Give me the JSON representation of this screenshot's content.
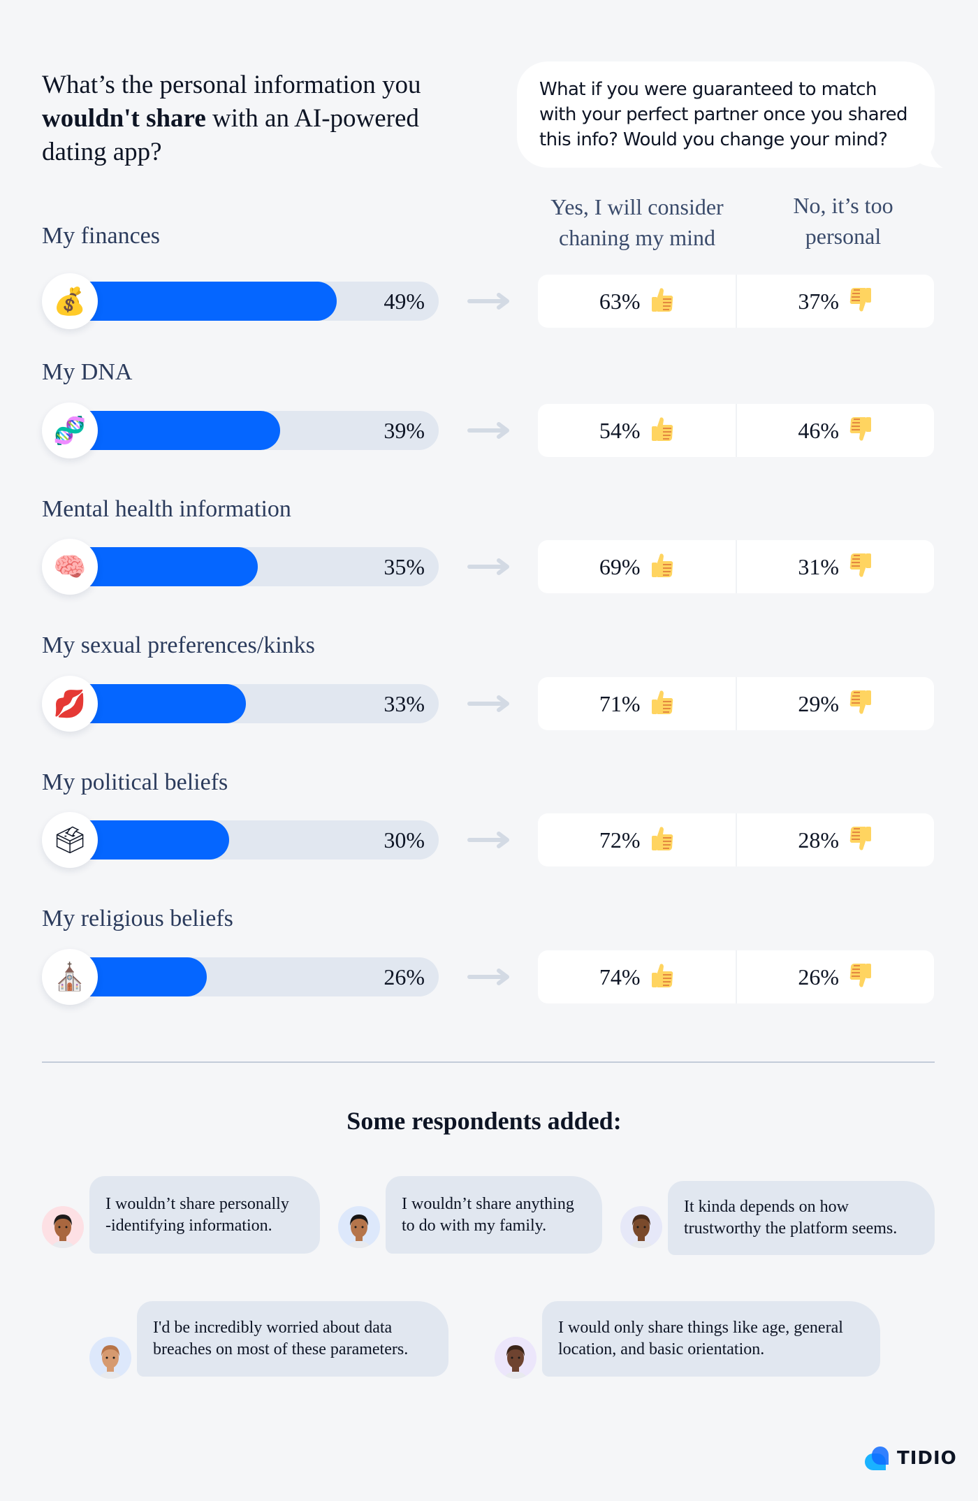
{
  "header": {
    "question_part1": "What’s the personal information you ",
    "question_bold": "wouldn't share",
    "question_part2": " with an AI-powered dating app?",
    "bubble_text": "What if you were guaranteed  to match with your perfect partner once you shared this info? Would you change your mind?",
    "col_yes": "Yes, I will consider chaning my mind",
    "col_no": "No, it’s too personal"
  },
  "chart_data": {
    "type": "bar",
    "title": "What’s the personal information you wouldn't share with an AI-powered dating app?",
    "orientation": "horizontal",
    "categories": [
      "My finances",
      "My DNA",
      "Mental health information",
      "My sexual preferences/kinks",
      "My political beliefs",
      "My religious beliefs"
    ],
    "values": [
      49,
      39,
      35,
      33,
      30,
      26
    ],
    "unit": "%",
    "followup_question": "What if you were guaranteed to match with your perfect partner once you shared this info? Would you change your mind?",
    "series": [
      {
        "name": "Yes, I will consider chaning my mind",
        "values": [
          63,
          54,
          69,
          71,
          72,
          74
        ]
      },
      {
        "name": "No, it’s too personal",
        "values": [
          37,
          46,
          31,
          29,
          28,
          26
        ]
      }
    ],
    "colors": {
      "bar_fill": "#0566ff",
      "bar_track": "#e1e7f0"
    }
  },
  "rows": [
    {
      "label": "My finances",
      "icon": "money-bag-icon",
      "glyph": "💰",
      "pct": 49,
      "pct_label": "49%",
      "yes": "63%",
      "no": "37%"
    },
    {
      "label": "My DNA",
      "icon": "dna-icon",
      "glyph": "🧬",
      "pct": 39,
      "pct_label": "39%",
      "yes": "54%",
      "no": "46%"
    },
    {
      "label": "Mental health information",
      "icon": "brain-icon",
      "glyph": "🧠",
      "pct": 35,
      "pct_label": "35%",
      "yes": "69%",
      "no": "31%"
    },
    {
      "label": "My sexual preferences/kinks",
      "icon": "kiss-mark-icon",
      "glyph": "💋",
      "pct": 33,
      "pct_label": "33%",
      "yes": "71%",
      "no": "29%"
    },
    {
      "label": "My political beliefs",
      "icon": "ballot-box-icon",
      "glyph": "🗳",
      "pct": 30,
      "pct_label": "30%",
      "yes": "72%",
      "no": "28%"
    },
    {
      "label": "My religious beliefs",
      "icon": "church-icon",
      "glyph": "⛪",
      "pct": 26,
      "pct_label": "26%",
      "yes": "74%",
      "no": "26%"
    }
  ],
  "quotes": {
    "title": "Some respondents added:",
    "items": [
      {
        "text_line1": "I wouldn’t share personally",
        "text_line2": "-identifying information.",
        "avatar_bg": "#fde0e4",
        "skin": "#a9673f",
        "hair": "#1d1a1a"
      },
      {
        "text_line1": "I wouldn’t share anything",
        "text_line2": "to do with my family.",
        "avatar_bg": "#dde8fb",
        "skin": "#b5754b",
        "hair": "#161414"
      },
      {
        "text_line1": "It kinda depends on how",
        "text_line2": "trustworthy the platform seems.",
        "avatar_bg": "#e6e8f8",
        "skin": "#7a4a2c",
        "hair": "#4a2c1a"
      },
      {
        "text_line1": "I'd be incredibly worried about data",
        "text_line2": "breaches on most of these parameters.",
        "avatar_bg": "#dde8fb",
        "skin": "#d69a70",
        "hair": "#b77448"
      },
      {
        "text_line1": "I would only share things like age, general",
        "text_line2": "location, and basic orientation.",
        "avatar_bg": "#ece6fb",
        "skin": "#6e4330",
        "hair": "#3a2418"
      }
    ]
  },
  "brand": {
    "name": "TIDIO",
    "colors": [
      "#1ab2ff",
      "#0f6bff"
    ]
  }
}
